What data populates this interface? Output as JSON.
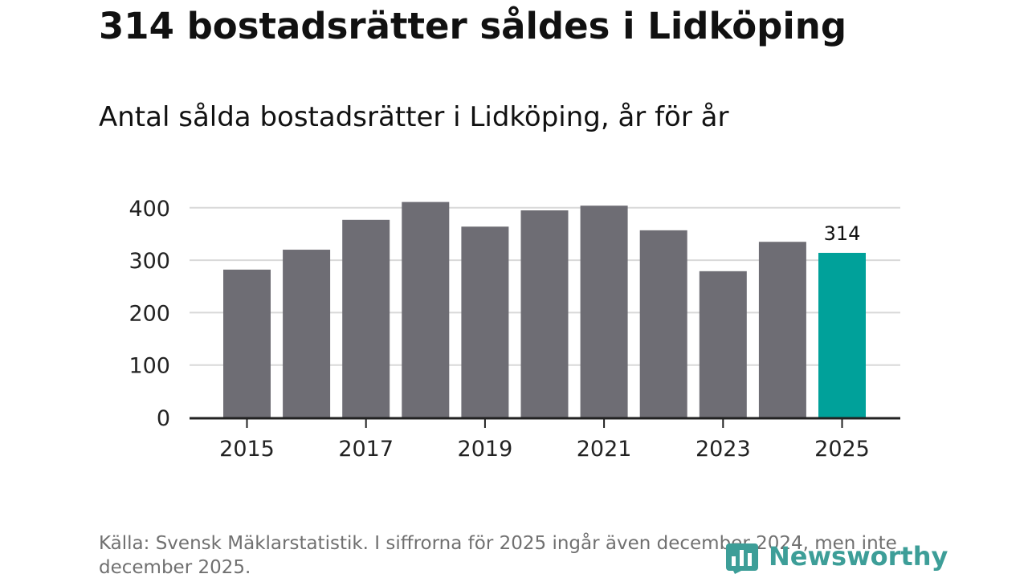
{
  "chart_data": {
    "type": "bar",
    "title": "314 bostadsrätter såldes i Lidköping",
    "subtitle": "Antal sålda bostadsrätter i Lidköping, år för år",
    "categories": [
      "2015",
      "2016",
      "2017",
      "2018",
      "2019",
      "2020",
      "2021",
      "2022",
      "2023",
      "2024",
      "2025"
    ],
    "values": [
      282,
      320,
      377,
      411,
      364,
      395,
      404,
      357,
      279,
      335,
      314
    ],
    "x_tick_labels": [
      "2015",
      "2017",
      "2019",
      "2021",
      "2023",
      "2025"
    ],
    "y_ticks": [
      0,
      100,
      200,
      300,
      400
    ],
    "ylim": [
      0,
      420
    ],
    "highlight_index": 10,
    "highlight_label": "314",
    "grid": true,
    "xlabel": "",
    "ylabel": ""
  },
  "colors": {
    "bar": "#6e6d74",
    "highlight": "#00a19a",
    "grid": "#d9d9d9",
    "axis": "#222222",
    "brand": "#3d9e98"
  },
  "footer": {
    "source": "Källa: Svensk Mäklarstatistik. I siffrorna för 2025 ingår även december 2024, men inte december 2025."
  },
  "brand": {
    "name": "Newsworthy"
  }
}
